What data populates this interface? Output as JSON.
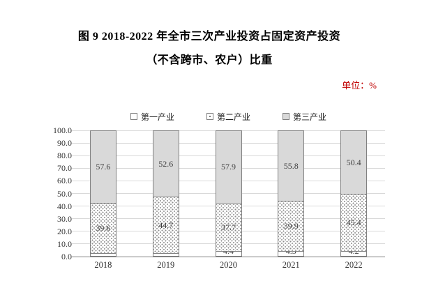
{
  "title": {
    "line1": "图 9  2018-2022 年全市三次产业投资占固定资产投资",
    "line2": "（不含跨市、农户）比重"
  },
  "unit_label": "单位：%",
  "colors": {
    "unit_red": "#c00000",
    "bar_gray_fill": "#d9d9d9",
    "bar_border": "#808080",
    "gridline": "#d9d9d9",
    "axis_line": "#7f7f7f",
    "label_text": "#404040"
  },
  "chart_data": {
    "type": "bar",
    "stacked": true,
    "title": "图 9 2018-2022 年全市三次产业投资占固定资产投资（不含跨市、农户）比重",
    "xlabel": "",
    "ylabel": "单位：%",
    "ylim": [
      0,
      100
    ],
    "grid": true,
    "legend_position": "top",
    "categories": [
      "2018",
      "2019",
      "2020",
      "2021",
      "2022"
    ],
    "series": [
      {
        "name": "第一产业",
        "fill": "white",
        "values": [
          2.8,
          2.7,
          4.4,
          4.3,
          4.2
        ]
      },
      {
        "name": "第二产业",
        "fill": "dotted",
        "values": [
          39.6,
          44.7,
          37.7,
          39.9,
          45.4
        ]
      },
      {
        "name": "第三产业",
        "fill": "gray",
        "values": [
          57.6,
          52.6,
          57.9,
          55.8,
          50.4
        ]
      }
    ],
    "yticks": [
      "100.0",
      "90.0",
      "80.0",
      "70.0",
      "60.0",
      "50.0",
      "40.0",
      "30.0",
      "20.0",
      "10.0",
      "0.0"
    ]
  }
}
